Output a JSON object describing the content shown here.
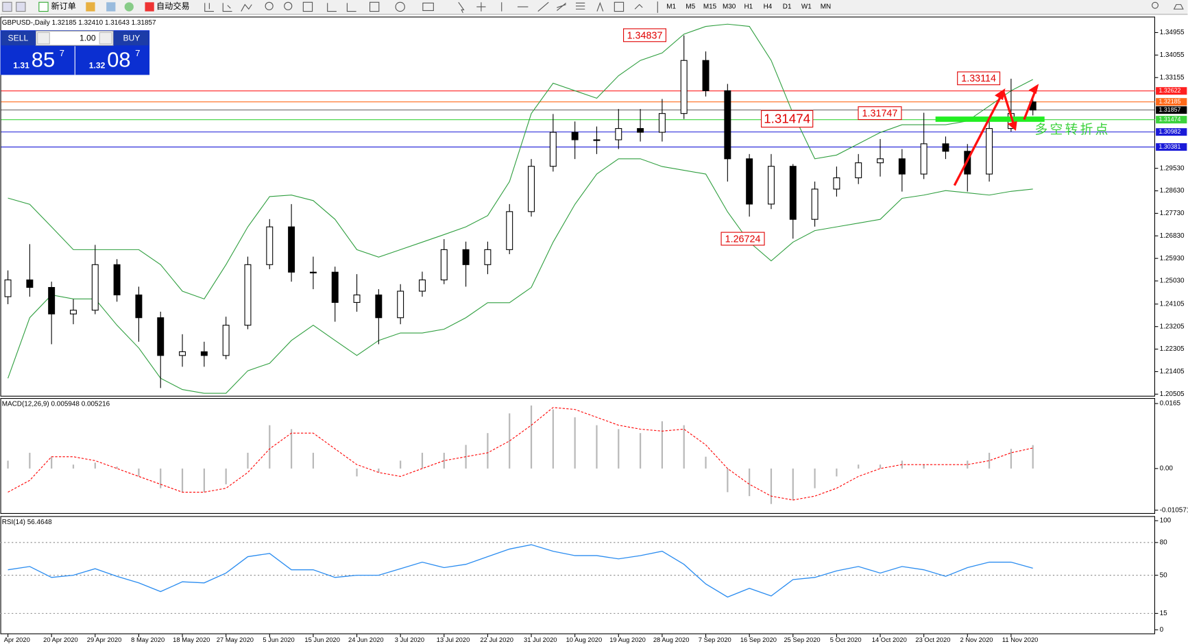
{
  "toolbar": {
    "new_order": "新订单",
    "auto_trading": "自动交易",
    "timeframes": [
      "M1",
      "M5",
      "M15",
      "M30",
      "H1",
      "H4",
      "D1",
      "W1",
      "MN"
    ]
  },
  "trade_panel": {
    "sell": "SELL",
    "buy": "BUY",
    "lots": "1.00",
    "sell_price": {
      "prefix": "1.31",
      "big": "85",
      "small": "7"
    },
    "buy_price": {
      "prefix": "1.32",
      "big": "08",
      "small": "7"
    }
  },
  "chart_data": [
    {
      "type": "candlestick",
      "title": "GBPUSD-,Daily  1.32185 1.32410 1.31643 1.31857",
      "categories": [
        "Apr 2020",
        null,
        "20 Apr 2020",
        null,
        "29 Apr 2020",
        null,
        "8 May 2020",
        null,
        "18 May 2020",
        null,
        "27 May 2020",
        null,
        "5 Jun 2020",
        null,
        "15 Jun 2020",
        null,
        "24 Jun 2020",
        null,
        "3 Jul 2020",
        null,
        "13 Jul 2020",
        null,
        "22 Jul 2020",
        null,
        "31 Jul 2020",
        null,
        "10 Aug 2020",
        null,
        "19 Aug 2020",
        null,
        "28 Aug 2020",
        null,
        "7 Sep 2020",
        null,
        "16 Sep 2020",
        null,
        "25 Sep 2020",
        null,
        "5 Oct 2020",
        null,
        "14 Oct 2020",
        null,
        "23 Oct 2020",
        null,
        "2 Nov 2020",
        null,
        "11 Nov 2020",
        null
      ],
      "open": [
        1.244,
        1.2507,
        1.2477,
        1.2371,
        1.2386,
        1.2568,
        1.2447,
        1.2356,
        1.2205,
        1.222,
        1.2205,
        1.2326,
        1.2568,
        1.2719,
        1.2538,
        1.2538,
        1.2417,
        1.2447,
        1.2356,
        1.2462,
        1.2507,
        1.2628,
        1.2568,
        1.2628,
        1.278,
        1.2961,
        1.3097,
        1.3067,
        1.3067,
        1.3112,
        1.3097,
        1.3172,
        1.3384,
        1.3263,
        1.2991,
        1.281,
        1.2961,
        1.2749,
        1.287,
        1.2915,
        1.2975,
        1.2991,
        1.293,
        1.3051,
        1.3021,
        1.293,
        1.3112,
        1.32185
      ],
      "high": [
        1.2545,
        1.265,
        1.25,
        1.243,
        1.2647,
        1.259,
        1.248,
        1.238,
        1.229,
        1.226,
        1.236,
        1.26,
        1.275,
        1.281,
        1.26,
        1.256,
        1.253,
        1.247,
        1.249,
        1.254,
        1.267,
        1.266,
        1.266,
        1.281,
        1.299,
        1.317,
        1.314,
        1.312,
        1.319,
        1.319,
        1.323,
        1.3484,
        1.342,
        1.329,
        1.301,
        1.301,
        1.297,
        1.29,
        1.296,
        1.301,
        1.307,
        1.303,
        1.3175,
        1.308,
        1.305,
        1.314,
        1.3311,
        1.3241
      ],
      "low": [
        1.241,
        1.244,
        1.225,
        1.233,
        1.237,
        1.242,
        1.226,
        1.2075,
        1.216,
        1.216,
        1.219,
        1.231,
        1.255,
        1.25,
        1.247,
        1.234,
        1.238,
        1.225,
        1.233,
        1.244,
        1.249,
        1.248,
        1.253,
        1.261,
        1.276,
        1.294,
        1.299,
        1.301,
        1.303,
        1.306,
        1.306,
        1.315,
        1.324,
        1.29,
        1.276,
        1.279,
        1.2672,
        1.272,
        1.284,
        1.289,
        1.292,
        1.286,
        1.291,
        1.299,
        1.286,
        1.29,
        1.31,
        1.31643
      ],
      "close": [
        1.2507,
        1.2477,
        1.2371,
        1.2386,
        1.2568,
        1.2447,
        1.2356,
        1.2205,
        1.222,
        1.2205,
        1.2326,
        1.2568,
        1.2719,
        1.2538,
        1.2538,
        1.2417,
        1.2447,
        1.2356,
        1.2462,
        1.2507,
        1.2628,
        1.2568,
        1.2628,
        1.278,
        1.2961,
        1.3097,
        1.3067,
        1.3067,
        1.3112,
        1.3097,
        1.3172,
        1.3384,
        1.3263,
        1.2991,
        1.281,
        1.2961,
        1.2749,
        1.287,
        1.2915,
        1.2975,
        1.2991,
        1.293,
        1.3051,
        1.3021,
        1.293,
        1.3112,
        1.3172,
        1.31857
      ],
      "bands": {
        "color": "#2e9e3e",
        "upper": [
          1.2834,
          1.2809,
          1.2719,
          1.2628,
          1.2628,
          1.2628,
          1.2628,
          1.2568,
          1.2462,
          1.2431,
          1.2568,
          1.2719,
          1.284,
          1.2846,
          1.2824,
          1.2749,
          1.2628,
          1.2598,
          1.2628,
          1.2658,
          1.2688,
          1.2719,
          1.2764,
          1.29,
          1.3172,
          1.3293,
          1.3263,
          1.3233,
          1.3323,
          1.3384,
          1.3414,
          1.3489,
          1.352,
          1.3529,
          1.352,
          1.3384,
          1.3172,
          1.2991,
          1.3006,
          1.3051,
          1.3096,
          1.3127,
          1.3127,
          1.3127,
          1.3142,
          1.3202,
          1.3263,
          1.3308
        ],
        "lower": [
          1.2114,
          1.2356,
          1.2447,
          1.2431,
          1.2431,
          1.2326,
          1.2235,
          1.2114,
          1.2069,
          1.2054,
          1.2054,
          1.2144,
          1.2174,
          1.2265,
          1.2326,
          1.2265,
          1.2205,
          1.2265,
          1.2295,
          1.2295,
          1.231,
          1.2356,
          1.2416,
          1.2416,
          1.2477,
          1.2658,
          1.2809,
          1.293,
          1.2991,
          1.2991,
          1.296,
          1.2945,
          1.293,
          1.2779,
          1.2658,
          1.2583,
          1.2658,
          1.2704,
          1.2719,
          1.2734,
          1.2749,
          1.2833,
          1.2846,
          1.2864,
          1.2855,
          1.2846,
          1.2861,
          1.287
        ]
      },
      "price_lines": [
        {
          "value": 1.32622,
          "color": "#ff2020"
        },
        {
          "value": 1.32185,
          "color": "#ff6a1a"
        },
        {
          "value": 1.31857,
          "color": "#000000"
        },
        {
          "value": 1.31474,
          "color": "#3cd23c"
        },
        {
          "value": 1.30982,
          "color": "#1a1ad8"
        },
        {
          "value": 1.30381,
          "color": "#1a1ad8"
        }
      ],
      "annotations": [
        "1.34837",
        "1.33114",
        "1.31747",
        "1.31474",
        "1.26724",
        "多空转折点"
      ],
      "ylim": [
        1.2044,
        1.3559
      ],
      "yticks": [
        1.34955,
        1.34055,
        1.33155,
        {
          "value": 1.2953,
          "label": "1.29530"
        },
        {
          "value": 1.2863,
          "label": "1.28630"
        },
        {
          "value": 1.2773,
          "label": "1.27730"
        },
        {
          "value": 1.2683,
          "label": "1.26830"
        },
        {
          "value": 1.2593,
          "label": "1.25930"
        },
        {
          "value": 1.2503,
          "label": "1.25030"
        },
        1.24105,
        1.23205,
        1.22305,
        1.21405,
        1.20505
      ]
    },
    {
      "type": "macd",
      "title": "MACD(12,26,9) 0.005948 0.005216",
      "histogram": [
        0.002,
        0.004,
        0.003,
        0.001,
        0.0015,
        0.0005,
        -0.002,
        -0.005,
        -0.006,
        -0.006,
        -0.004,
        0.004,
        0.011,
        0.01,
        0.004,
        0.0,
        -0.002,
        -0.001,
        0.002,
        0.004,
        0.004,
        0.006,
        0.009,
        0.014,
        0.016,
        0.015,
        0.013,
        0.011,
        0.01,
        0.009,
        0.012,
        0.011,
        0.003,
        -0.006,
        -0.007,
        -0.009,
        -0.008,
        -0.005,
        -0.002,
        0.001,
        0.001,
        0.002,
        0.001,
        0.0,
        0.002,
        0.004,
        0.005,
        0.005948
      ],
      "signal": [
        -0.006,
        -0.003,
        0.003,
        0.003,
        0.002,
        0.0,
        -0.002,
        -0.004,
        -0.006,
        -0.006,
        -0.005,
        -0.001,
        0.005,
        0.009,
        0.009,
        0.005,
        0.001,
        -0.001,
        -0.002,
        0.0,
        0.002,
        0.003,
        0.004,
        0.007,
        0.011,
        0.0155,
        0.015,
        0.013,
        0.011,
        0.01,
        0.0095,
        0.01,
        0.006,
        0.0,
        -0.004,
        -0.007,
        -0.008,
        -0.007,
        -0.005,
        -0.002,
        0.0,
        0.001,
        0.001,
        0.001,
        0.001,
        0.002,
        0.004,
        0.005216
      ],
      "histogram_color": "#b8b8b8",
      "signal_color": "#ff0000",
      "ylim": [
        -0.0115,
        0.0177
      ],
      "yticks": [
        0.0165,
        {
          "value": 0,
          "label": "0.00"
        },
        -0.010571
      ]
    },
    {
      "type": "line",
      "title": "RSI(14) 56.4648",
      "values": [
        55,
        58,
        48,
        50,
        56,
        49,
        43,
        35,
        44,
        43,
        52,
        67,
        70,
        55,
        55,
        48,
        50,
        50,
        56,
        62,
        57,
        60,
        67,
        74,
        78,
        72,
        68,
        68,
        65,
        68,
        72,
        60,
        42,
        30,
        38,
        31,
        46,
        48,
        54,
        58,
        52,
        58,
        55,
        49,
        57,
        62,
        62,
        56.4648
      ],
      "color": "#2a8cf0",
      "ylim": [
        -4,
        103.5
      ],
      "yticks": [
        100,
        80,
        50,
        15,
        0
      ]
    }
  ]
}
